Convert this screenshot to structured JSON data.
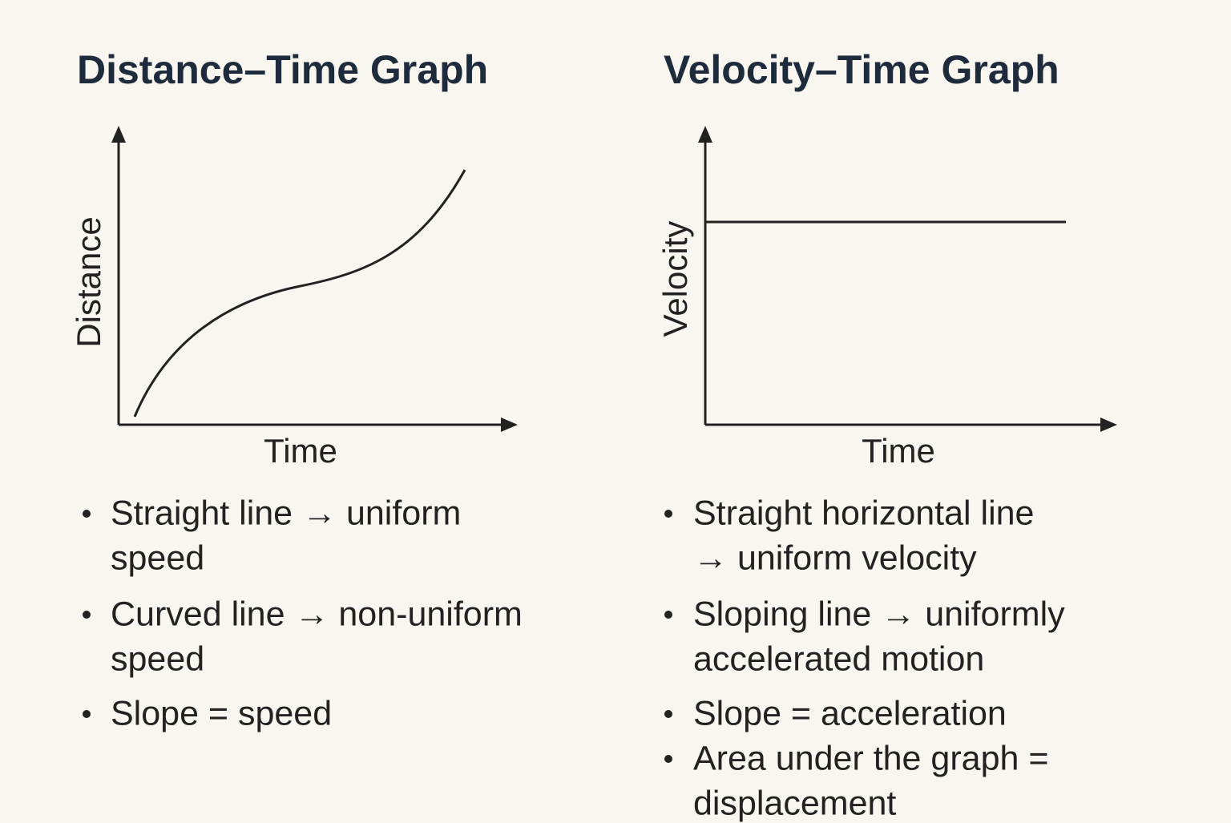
{
  "panels": [
    {
      "title": "Distance–Time Graph",
      "y_label": "Distance",
      "x_label": "Time",
      "bullets": [
        [
          "Straight line → uniform",
          "speed"
        ],
        [
          "Curved line → non-uniform",
          "speed"
        ],
        [
          "Slope = speed"
        ]
      ]
    },
    {
      "title": "Velocity–Time Graph",
      "y_label": "Velocity",
      "x_label": "Time",
      "bullets": [
        [
          "Straight horizontal line",
          "→ uniform velocity"
        ],
        [
          "Sloping line → uniformly",
          "accelerated motion"
        ],
        [
          "Slope = acceleration"
        ],
        [
          "Area under the graph =",
          "displacement"
        ]
      ]
    }
  ]
}
